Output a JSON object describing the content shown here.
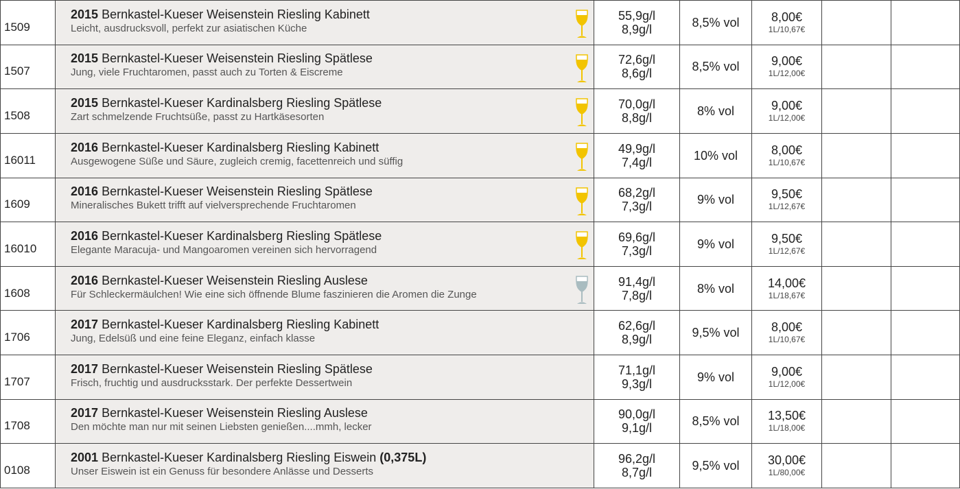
{
  "rows": [
    {
      "id": "1509",
      "year": "2015",
      "name": "Bernkastel-Kueser Weisenstein Riesling Kabinett",
      "description": "Leicht, ausdrucksvoll, perfekt zur asiatischen Küche",
      "sugar": "55,9g/l",
      "acid": "8,9g/l",
      "alcohol": "8,5% vol",
      "price": "8,00€",
      "per_liter": "1L/10,67€",
      "glass": "#f2c400"
    },
    {
      "id": "1507",
      "year": "2015",
      "name": "Bernkastel-Kueser Weisenstein Riesling Spätlese",
      "description": "Jung, viele Fruchtaromen, passt auch zu Torten & Eiscreme",
      "sugar": "72,6g/l",
      "acid": "8,6g/l",
      "alcohol": "8,5% vol",
      "price": "9,00€",
      "per_liter": "1L/12,00€",
      "glass": "#f2c400"
    },
    {
      "id": "1508",
      "year": "2015",
      "name": "Bernkastel-Kueser Kardinalsberg Riesling Spätlese",
      "description": "Zart schmelzende Fruchtsüße, passt zu Hartkäsesorten",
      "sugar": "70,0g/l",
      "acid": "8,8g/l",
      "alcohol": "8% vol",
      "price": "9,00€",
      "per_liter": "1L/12,00€",
      "glass": "#f2c400"
    },
    {
      "id": "16011",
      "year": "2016",
      "name": "Bernkastel-Kueser Kardinalsberg Riesling Kabinett",
      "description": "Ausgewogene Süße und Säure, zugleich cremig, facettenreich und süffig",
      "sugar": "49,9g/l",
      "acid": "7,4g/l",
      "alcohol": "10% vol",
      "price": "8,00€",
      "per_liter": "1L/10,67€",
      "glass": "#f2c400"
    },
    {
      "id": "1609",
      "year": "2016",
      "name": "Bernkastel-Kueser Weisenstein Riesling Spätlese",
      "description": "Mineralisches Bukett trifft auf vielversprechende Fruchtaromen",
      "sugar": "68,2g/l",
      "acid": "7,3g/l",
      "alcohol": "9% vol",
      "price": "9,50€",
      "per_liter": "1L/12,67€",
      "glass": "#f2c400"
    },
    {
      "id": "16010",
      "year": "2016",
      "name": "Bernkastel-Kueser Kardinalsberg Riesling Spätlese",
      "description": "Elegante Maracuja- und Mangoaromen vereinen sich hervorragend",
      "sugar": "69,6g/l",
      "acid": "7,3g/l",
      "alcohol": "9% vol",
      "price": "9,50€",
      "per_liter": "1L/12,67€",
      "glass": "#f2c400"
    },
    {
      "id": "1608",
      "year": "2016",
      "name": "Bernkastel-Kueser Weisenstein Riesling Auslese",
      "description": "Für Schleckermäulchen! Wie eine sich öffnende Blume faszinieren die Aromen die Zunge",
      "sugar": "91,4g/l",
      "acid": "7,8g/l",
      "alcohol": "8% vol",
      "price": "14,00€",
      "per_liter": "1L/18,67€",
      "glass": "#a9bcc0"
    },
    {
      "id": "1706",
      "year": "2017",
      "name": "Bernkastel-Kueser Kardinalsberg Riesling Kabinett",
      "description": "Jung, Edelsüß und eine feine Eleganz, einfach klasse",
      "sugar": "62,6g/l",
      "acid": "8,9g/l",
      "alcohol": "9,5% vol",
      "price": "8,00€",
      "per_liter": "1L/10,67€"
    },
    {
      "id": "1707",
      "year": "2017",
      "name": "Bernkastel-Kueser Weisenstein Riesling Spätlese",
      "description": "Frisch, fruchtig und ausdrucksstark. Der perfekte Dessertwein",
      "sugar": "71,1g/l",
      "acid": "9,3g/l",
      "alcohol": "9% vol",
      "price": "9,00€",
      "per_liter": "1L/12,00€"
    },
    {
      "id": "1708",
      "year": "2017",
      "name": "Bernkastel-Kueser Weisenstein Riesling Auslese",
      "description": "Den möchte man nur mit seinen Liebsten genießen....mmh, lecker",
      "sugar": "90,0g/l",
      "acid": "9,1g/l",
      "alcohol": "8,5% vol",
      "price": "13,50€",
      "per_liter": "1L/18,00€"
    },
    {
      "id": "0108",
      "year": "2001",
      "name": "Bernkastel-Kueser Kardinalsberg Riesling Eiswein",
      "extra": "(0,375L)",
      "description": "Unser Eiswein ist ein Genuss für besondere Anlässe und Desserts",
      "sugar": "96,2g/l",
      "acid": "8,7g/l",
      "alcohol": "9,5% vol",
      "price": "30,00€",
      "per_liter": "1L/80,00€"
    }
  ]
}
